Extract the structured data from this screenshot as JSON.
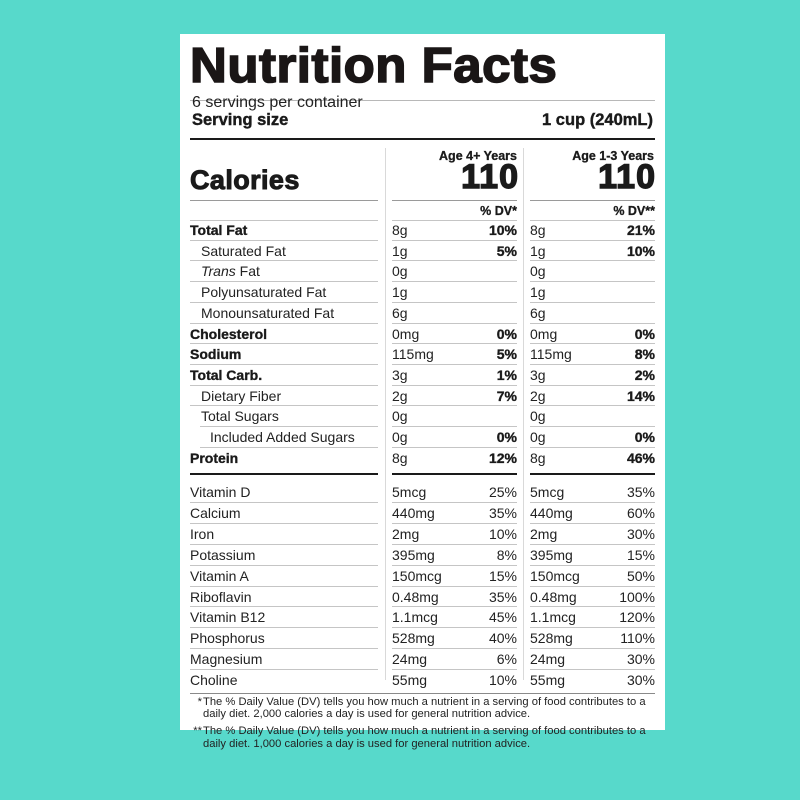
{
  "label": {
    "title": "Nutrition Facts",
    "servings_per_container": "6 servings per container",
    "serving_size_label": "Serving size",
    "serving_size_value": "1 cup (240mL)",
    "calories_label": "Calories",
    "columns": [
      {
        "age_label": "Age 4+ Years",
        "calories": "110",
        "dv_header": "% DV*"
      },
      {
        "age_label": "Age 1-3 Years",
        "calories": "110",
        "dv_header": "% DV**"
      }
    ]
  },
  "nutrients": [
    {
      "name": "Total Fat",
      "style": "bold",
      "a_amt": "8g",
      "a_dv": "10%",
      "b_amt": "8g",
      "b_dv": "21%"
    },
    {
      "name": "Saturated Fat",
      "style": "ind1",
      "a_amt": "1g",
      "a_dv": "5%",
      "b_amt": "1g",
      "b_dv": "10%"
    },
    {
      "name_italic": "Trans",
      "name": " Fat",
      "style": "ind1",
      "a_amt": "0g",
      "a_dv": "",
      "b_amt": "0g",
      "b_dv": ""
    },
    {
      "name": "Polyunsaturated Fat",
      "style": "ind1",
      "a_amt": "1g",
      "a_dv": "",
      "b_amt": "1g",
      "b_dv": ""
    },
    {
      "name": "Monounsaturated Fat",
      "style": "ind1",
      "a_amt": "6g",
      "a_dv": "",
      "b_amt": "6g",
      "b_dv": ""
    },
    {
      "name": "Cholesterol",
      "style": "bold",
      "a_amt": "0mg",
      "a_dv": "0%",
      "b_amt": "0mg",
      "b_dv": "0%"
    },
    {
      "name": "Sodium",
      "style": "bold",
      "a_amt": "115mg",
      "a_dv": "5%",
      "b_amt": "115mg",
      "b_dv": "8%"
    },
    {
      "name": "Total Carb.",
      "style": "bold",
      "a_amt": "3g",
      "a_dv": "1%",
      "b_amt": "3g",
      "b_dv": "2%"
    },
    {
      "name": "Dietary Fiber",
      "style": "ind1",
      "a_amt": "2g",
      "a_dv": "7%",
      "b_amt": "2g",
      "b_dv": "14%"
    },
    {
      "name": "Total Sugars",
      "style": "ind1",
      "a_amt": "0g",
      "a_dv": "",
      "b_amt": "0g",
      "b_dv": ""
    },
    {
      "name": "Included Added Sugars",
      "style": "ind2",
      "a_amt": "0g",
      "a_dv": "0%",
      "b_amt": "0g",
      "b_dv": "0%"
    },
    {
      "name": "Protein",
      "style": "bold",
      "a_amt": "8g",
      "a_dv": "12%",
      "b_amt": "8g",
      "b_dv": "46%"
    }
  ],
  "vitamins": [
    {
      "name": "Vitamin D",
      "a_amt": "5mcg",
      "a_dv": "25%",
      "b_amt": "5mcg",
      "b_dv": "35%"
    },
    {
      "name": "Calcium",
      "a_amt": "440mg",
      "a_dv": "35%",
      "b_amt": "440mg",
      "b_dv": "60%"
    },
    {
      "name": "Iron",
      "a_amt": "2mg",
      "a_dv": "10%",
      "b_amt": "2mg",
      "b_dv": "30%"
    },
    {
      "name": "Potassium",
      "a_amt": "395mg",
      "a_dv": "8%",
      "b_amt": "395mg",
      "b_dv": "15%"
    },
    {
      "name": "Vitamin A",
      "a_amt": "150mcg",
      "a_dv": "15%",
      "b_amt": "150mcg",
      "b_dv": "50%"
    },
    {
      "name": "Riboflavin",
      "a_amt": "0.48mg",
      "a_dv": "35%",
      "b_amt": "0.48mg",
      "b_dv": "100%"
    },
    {
      "name": "Vitamin B12",
      "a_amt": "1.1mcg",
      "a_dv": "45%",
      "b_amt": "1.1mcg",
      "b_dv": "120%"
    },
    {
      "name": "Phosphorus",
      "a_amt": "528mg",
      "a_dv": "40%",
      "b_amt": "528mg",
      "b_dv": "110%"
    },
    {
      "name": "Magnesium",
      "a_amt": "24mg",
      "a_dv": "6%",
      "b_amt": "24mg",
      "b_dv": "30%"
    },
    {
      "name": "Choline",
      "a_amt": "55mg",
      "a_dv": "10%",
      "b_amt": "55mg",
      "b_dv": "30%"
    }
  ],
  "footnotes": [
    {
      "mark": "*",
      "text": "The % Daily Value (DV) tells you how much a nutrient in a serving of food contributes to a daily diet. 2,000 calories a day is used for general nutrition advice."
    },
    {
      "mark": "**",
      "text": "The % Daily Value (DV) tells you how much a nutrient in a serving of food contributes to a daily diet. 1,000 calories a day is used for general nutrition advice."
    }
  ],
  "colors": {
    "background": "#57d9cb",
    "panel": "#ffffff",
    "text": "#1a1a1a"
  }
}
